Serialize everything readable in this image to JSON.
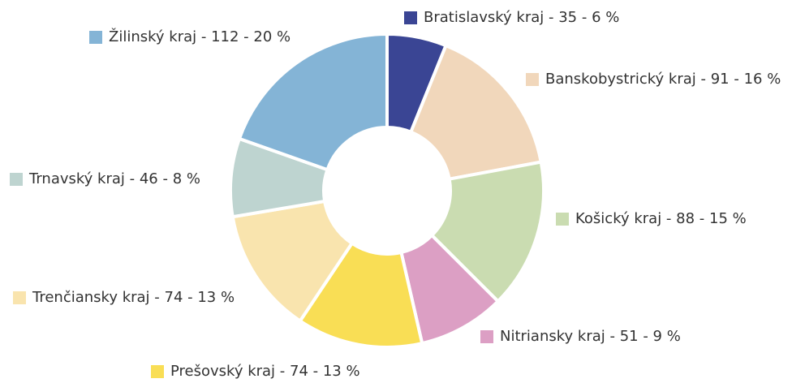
{
  "chart_data": {
    "type": "donut",
    "categories": [
      "Bratislavský kraj - 35 - 6 %",
      "Banskobystrický kraj - 91 - 16 %",
      "Košický kraj - 88 - 15 %",
      "Nitriansky kraj - 51 - 9 %",
      "Prešovský kraj - 74 - 13 %",
      "Trenčiansky kraj - 74 - 13 %",
      "Trnavský kraj - 46 - 8 %",
      "Žilinský kraj - 112 - 20 %"
    ],
    "values": [
      35,
      91,
      88,
      51,
      74,
      74,
      46,
      112
    ],
    "colors": [
      "#3a4594",
      "#f1d7bb",
      "#cadcb1",
      "#dc9fc4",
      "#f9de55",
      "#f9e4ae",
      "#bed4d0",
      "#84b4d6"
    ]
  }
}
